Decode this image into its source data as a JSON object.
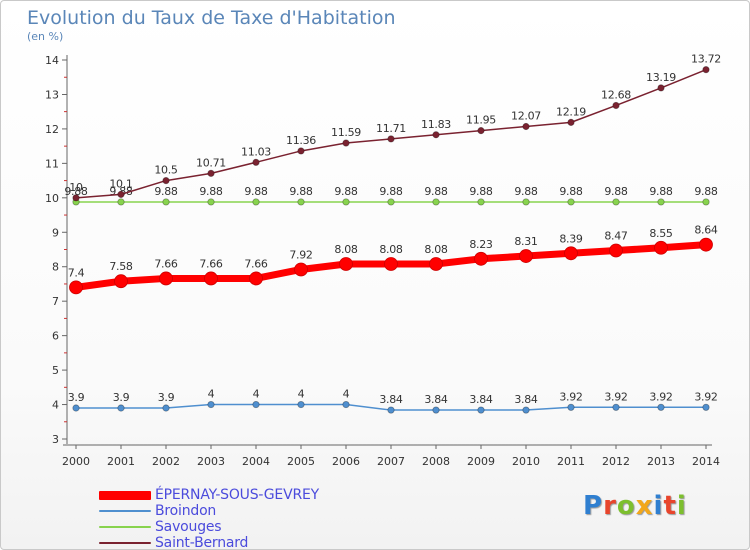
{
  "header": {
    "title": "Evolution du Taux de Taxe d'Habitation",
    "subtitle": "(en %)"
  },
  "logo": {
    "text": "Proxiti",
    "letter_colors": [
      "#2f7fd0",
      "#e8452c",
      "#7dbf2e",
      "#f2a71b",
      "#2f7fd0",
      "#e8452c",
      "#7dbf2e"
    ]
  },
  "chart_data": {
    "type": "line",
    "x": [
      2000,
      2001,
      2002,
      2003,
      2004,
      2005,
      2006,
      2007,
      2008,
      2009,
      2010,
      2011,
      2012,
      2013,
      2014
    ],
    "x_tick_labels": [
      "2000",
      "2001",
      "2002",
      "2003",
      "2004",
      "2005",
      "2006",
      "2007",
      "2008",
      "2009",
      "2010",
      "2011",
      "2012",
      "2013",
      "2014"
    ],
    "y_ticks": [
      3,
      4,
      5,
      6,
      7,
      8,
      9,
      10,
      11,
      12,
      13,
      14
    ],
    "y_tick_labels": [
      "3",
      "4",
      "5",
      "6",
      "7",
      "8",
      "9",
      "10",
      "11",
      "12",
      "13",
      "14"
    ],
    "ylim": [
      3,
      14
    ],
    "grid": false,
    "legend_position": "bottom-left",
    "series": [
      {
        "name": "ÉPERNAY-SOUS-GEVREY",
        "color": "#ff0000",
        "emphasis": true,
        "values": [
          7.4,
          7.58,
          7.66,
          7.66,
          7.66,
          7.92,
          8.08,
          8.08,
          8.08,
          8.23,
          8.31,
          8.39,
          8.47,
          8.55,
          8.64
        ],
        "labels": [
          "7.4",
          "7.58",
          "7.66",
          "7.66",
          "7.66",
          "7.92",
          "8.08",
          "8.08",
          "8.08",
          "8.23",
          "8.31",
          "8.39",
          "8.47",
          "8.55",
          "8.64"
        ]
      },
      {
        "name": "Broindon",
        "color": "#4f8fcf",
        "values": [
          3.9,
          3.9,
          3.9,
          4,
          4,
          4,
          4,
          3.84,
          3.84,
          3.84,
          3.84,
          3.92,
          3.92,
          3.92,
          3.92
        ],
        "labels": [
          "3.9",
          "3.9",
          "3.9",
          "4",
          "4",
          "4",
          "4",
          "3.84",
          "3.84",
          "3.84",
          "3.84",
          "3.92",
          "3.92",
          "3.92",
          "3.92"
        ]
      },
      {
        "name": "Savouges",
        "color": "#88d34e",
        "values": [
          9.88,
          9.88,
          9.88,
          9.88,
          9.88,
          9.88,
          9.88,
          9.88,
          9.88,
          9.88,
          9.88,
          9.88,
          9.88,
          9.88,
          9.88
        ],
        "labels": [
          "9.88",
          "9.88",
          "9.88",
          "9.88",
          "9.88",
          "9.88",
          "9.88",
          "9.88",
          "9.88",
          "9.88",
          "9.88",
          "9.88",
          "9.88",
          "9.88",
          "9.88"
        ]
      },
      {
        "name": "Saint-Bernard",
        "color": "#7a2230",
        "values": [
          10,
          10.1,
          10.5,
          10.71,
          11.03,
          11.36,
          11.59,
          11.71,
          11.83,
          11.95,
          12.07,
          12.19,
          12.68,
          13.19,
          13.72
        ],
        "labels": [
          "10",
          "10.1",
          "10.5",
          "10.71",
          "11.03",
          "11.36",
          "11.59",
          "11.71",
          "11.83",
          "11.95",
          "12.07",
          "12.19",
          "12.68",
          "13.19",
          "13.72"
        ]
      }
    ]
  }
}
